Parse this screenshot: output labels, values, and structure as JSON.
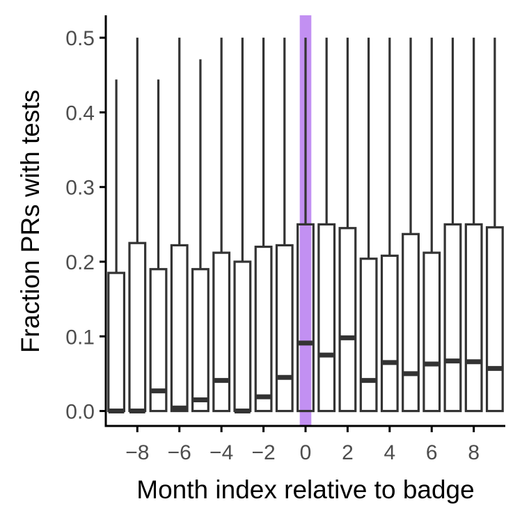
{
  "chart_data": {
    "type": "boxplot",
    "xlabel": "Month index relative to badge",
    "ylabel": "Fraction PRs with tests",
    "xlim": [
      -9.5,
      9.5
    ],
    "ylim": [
      -0.02,
      0.53
    ],
    "x_ticks": [
      -8,
      -6,
      -4,
      -2,
      0,
      2,
      4,
      6,
      8
    ],
    "x_tick_labels": [
      "−8",
      "−6",
      "−4",
      "−2",
      "0",
      "2",
      "4",
      "6",
      "8"
    ],
    "y_ticks": [
      0.0,
      0.1,
      0.2,
      0.3,
      0.4,
      0.5
    ],
    "y_tick_labels": [
      "0.0",
      "0.1",
      "0.2",
      "0.3",
      "0.4",
      "0.5"
    ],
    "grid": false,
    "legend": "none",
    "highlight": {
      "x": 0,
      "color": "#b77df0"
    },
    "box_color": "#333333",
    "boxes": [
      {
        "x": -9,
        "lower_whisker": 0.0,
        "q1": 0.0,
        "median": 0.0,
        "q3": 0.185,
        "upper_whisker": 0.444
      },
      {
        "x": -8,
        "lower_whisker": 0.0,
        "q1": 0.0,
        "median": 0.0,
        "q3": 0.225,
        "upper_whisker": 0.5
      },
      {
        "x": -7,
        "lower_whisker": 0.0,
        "q1": 0.0,
        "median": 0.027,
        "q3": 0.19,
        "upper_whisker": 0.444
      },
      {
        "x": -6,
        "lower_whisker": 0.0,
        "q1": 0.0,
        "median": 0.004,
        "q3": 0.222,
        "upper_whisker": 0.5
      },
      {
        "x": -5,
        "lower_whisker": 0.0,
        "q1": 0.0,
        "median": 0.015,
        "q3": 0.19,
        "upper_whisker": 0.471
      },
      {
        "x": -4,
        "lower_whisker": 0.0,
        "q1": 0.0,
        "median": 0.041,
        "q3": 0.212,
        "upper_whisker": 0.5
      },
      {
        "x": -3,
        "lower_whisker": 0.0,
        "q1": 0.0,
        "median": 0.0,
        "q3": 0.2,
        "upper_whisker": 0.5
      },
      {
        "x": -2,
        "lower_whisker": 0.0,
        "q1": 0.0,
        "median": 0.019,
        "q3": 0.22,
        "upper_whisker": 0.5
      },
      {
        "x": -1,
        "lower_whisker": 0.0,
        "q1": 0.0,
        "median": 0.045,
        "q3": 0.222,
        "upper_whisker": 0.5
      },
      {
        "x": 0,
        "lower_whisker": 0.0,
        "q1": 0.0,
        "median": 0.091,
        "q3": 0.25,
        "upper_whisker": 0.5
      },
      {
        "x": 1,
        "lower_whisker": 0.0,
        "q1": 0.0,
        "median": 0.075,
        "q3": 0.25,
        "upper_whisker": 0.5
      },
      {
        "x": 2,
        "lower_whisker": 0.0,
        "q1": 0.0,
        "median": 0.098,
        "q3": 0.245,
        "upper_whisker": 0.5
      },
      {
        "x": 3,
        "lower_whisker": 0.0,
        "q1": 0.0,
        "median": 0.041,
        "q3": 0.204,
        "upper_whisker": 0.5
      },
      {
        "x": 4,
        "lower_whisker": 0.0,
        "q1": 0.0,
        "median": 0.065,
        "q3": 0.208,
        "upper_whisker": 0.5
      },
      {
        "x": 5,
        "lower_whisker": 0.0,
        "q1": 0.0,
        "median": 0.05,
        "q3": 0.237,
        "upper_whisker": 0.5
      },
      {
        "x": 6,
        "lower_whisker": 0.0,
        "q1": 0.0,
        "median": 0.063,
        "q3": 0.212,
        "upper_whisker": 0.5
      },
      {
        "x": 7,
        "lower_whisker": 0.0,
        "q1": 0.0,
        "median": 0.067,
        "q3": 0.25,
        "upper_whisker": 0.5
      },
      {
        "x": 8,
        "lower_whisker": 0.0,
        "q1": 0.0,
        "median": 0.066,
        "q3": 0.25,
        "upper_whisker": 0.5
      },
      {
        "x": 9,
        "lower_whisker": 0.0,
        "q1": 0.0,
        "median": 0.057,
        "q3": 0.246,
        "upper_whisker": 0.5
      }
    ]
  }
}
